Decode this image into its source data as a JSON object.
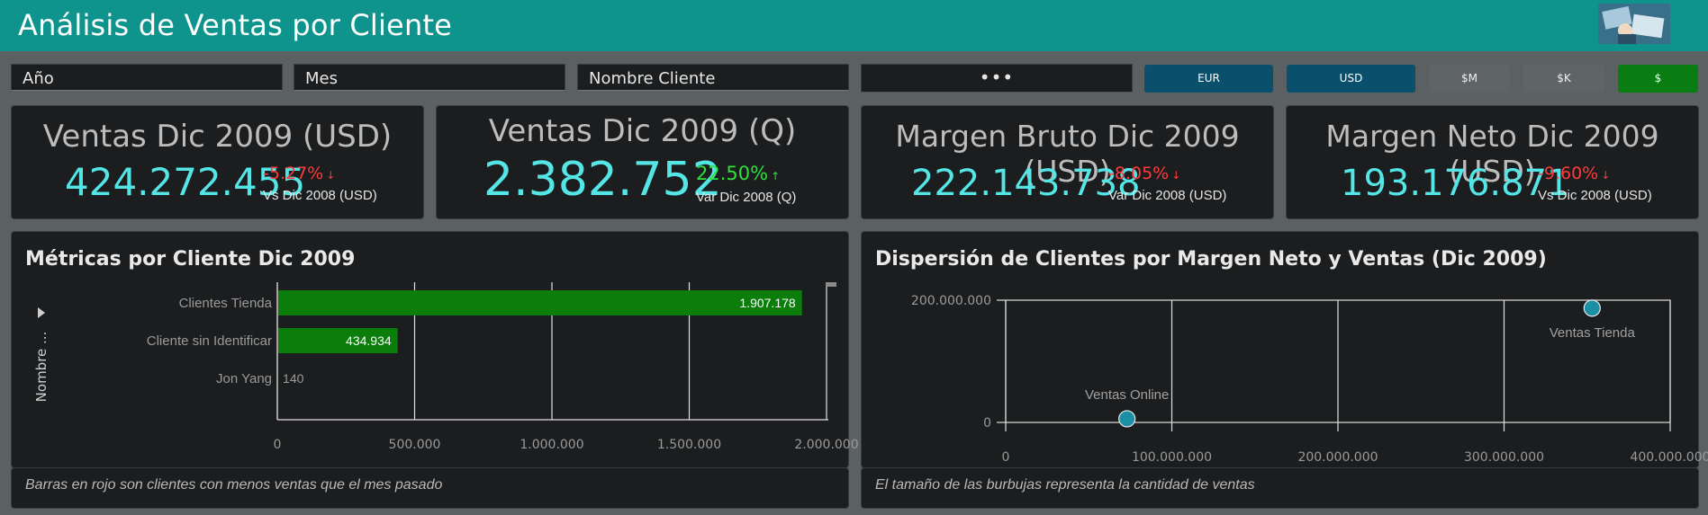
{
  "header": {
    "title": "Análisis de Ventas por Cliente"
  },
  "filters": {
    "year": "Año",
    "month": "Mes",
    "client_name": "Nombre Cliente",
    "more": "•••"
  },
  "buttons": {
    "eur": "EUR",
    "usd": "USD",
    "millions": "$M",
    "thousands": "$K",
    "units": "$"
  },
  "kpis": [
    {
      "title": "Ventas Dic 2009 (USD)",
      "value": "424.272.455",
      "delta": "-5.27%",
      "arrow": "↓",
      "compare": "Vs Dic 2008 (USD)",
      "trend": "neg"
    },
    {
      "title": "Ventas Dic 2009 (Q)",
      "value": "2.382.752",
      "delta": "22.50%",
      "arrow": "↑",
      "compare": "Var Dic 2008 (Q)",
      "trend": "pos"
    },
    {
      "title": "Margen Bruto Dic 2009 (USD)",
      "value": "222.143.738",
      "delta": "-8.05%",
      "arrow": "↓",
      "compare": "Var Dic 2008 (USD)",
      "trend": "neg"
    },
    {
      "title": "Margen Neto Dic 2009 (USD)",
      "value": "193.176.871",
      "delta": "-9.60%",
      "arrow": "↓",
      "compare": "Vs Dic 2008 (USD)",
      "trend": "neg"
    }
  ],
  "bar_panel": {
    "title": "Métricas por Cliente Dic 2009",
    "ylabel": "Nombre ...",
    "footnote": "Barras en rojo son clientes con menos ventas que el mes pasado"
  },
  "scatter_panel": {
    "title": "Dispersión de Clientes por Margen Neto y Ventas (Dic 2009)",
    "footnote": "El tamaño de las burbujas representa la cantidad de ventas"
  },
  "colors": {
    "header": "#0e948d",
    "bar": "#0a7d0a",
    "kpi_value": "#54e6e6",
    "bubble": "#1b8fa3"
  },
  "chart_data": [
    {
      "type": "bar",
      "orientation": "horizontal",
      "title": "Métricas por Cliente Dic 2009",
      "ylabel": "Nombre ...",
      "categories": [
        "Clientes Tienda",
        "Cliente sin Identificar",
        "Jon Yang"
      ],
      "values": [
        1907178,
        434934,
        140
      ],
      "value_labels": [
        "1.907.178",
        "434.934",
        "140"
      ],
      "xlim": [
        0,
        2000000
      ],
      "ticks": [
        0,
        500000,
        1000000,
        1500000,
        2000000
      ],
      "tick_labels": [
        "0",
        "500.000",
        "1.000.000",
        "1.500.000",
        "2.000.000"
      ],
      "grid": true
    },
    {
      "type": "scatter",
      "title": "Dispersión de Clientes por Margen Neto y Ventas (Dic 2009)",
      "points": [
        {
          "label": "Ventas Online",
          "x": 73000000,
          "y": 6000000
        },
        {
          "label": "Ventas Tienda",
          "x": 353000000,
          "y": 187000000
        }
      ],
      "xlim": [
        0,
        400000000
      ],
      "ylim": [
        0,
        200000000
      ],
      "xticks": [
        0,
        100000000,
        200000000,
        300000000,
        400000000
      ],
      "xtick_labels": [
        "0",
        "100.000.000",
        "200.000.000",
        "300.000.000",
        "400.000.000"
      ],
      "yticks": [
        0,
        200000000
      ],
      "ytick_labels": [
        "0",
        "200.000.000"
      ],
      "grid": true
    }
  ]
}
